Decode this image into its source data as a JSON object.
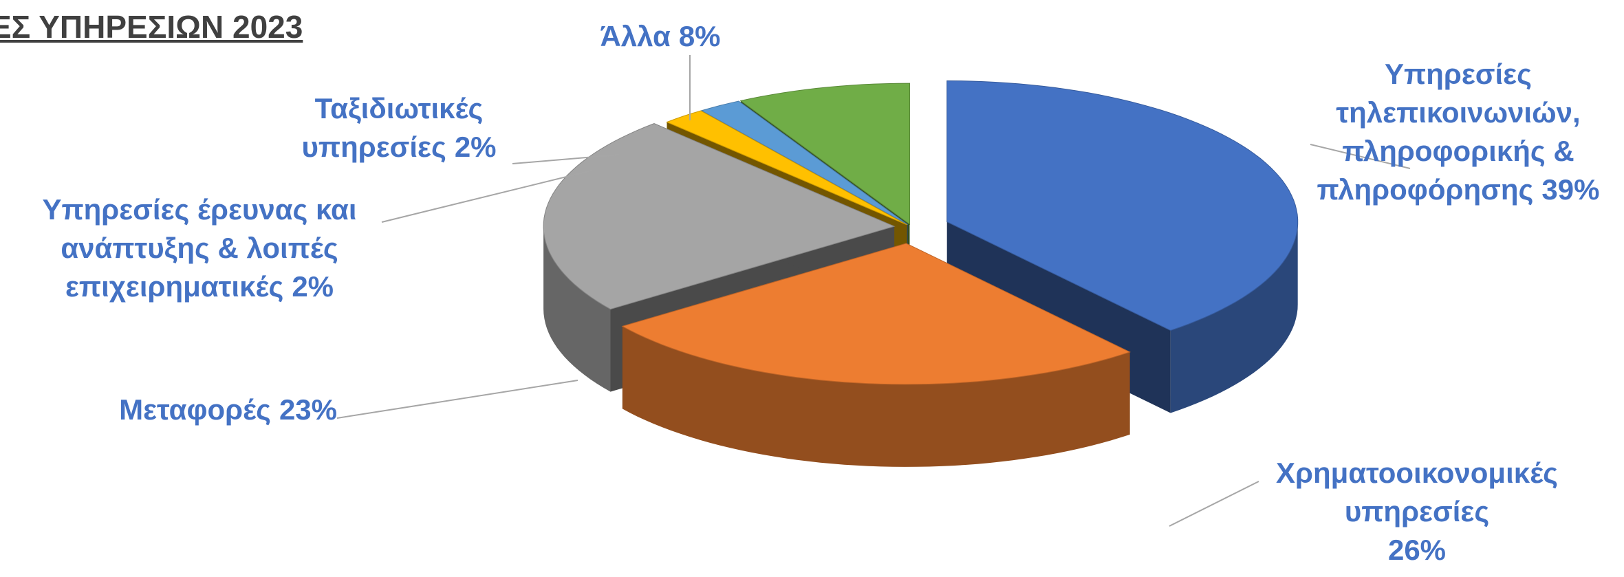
{
  "chart_data": {
    "type": "pie3d",
    "title": "ΕΣ ΥΠΗΡΕΣΙΩΝ 2023",
    "categories": [
      "Υπηρεσίες τηλεπικοινωνιών, πληροφορικής & πληροφόρησης",
      "Χρηματοοικονομικές υπηρεσίες",
      "Μεταφορές",
      "Υπηρεσίες έρευνας και ανάπτυξης & λοιπές επιχειρηματικές",
      "Ταξιδιωτικές υπηρεσίες",
      "Άλλα"
    ],
    "values": [
      39,
      26,
      23,
      2,
      2,
      8
    ],
    "value_labels": [
      "39%",
      "26%",
      "23%",
      "2%",
      "2%",
      "8%"
    ],
    "colors": [
      "#4472c4",
      "#ed7d31",
      "#a5a5a5",
      "#ffc000",
      "#5b9bd5",
      "#70ad47"
    ]
  }
}
